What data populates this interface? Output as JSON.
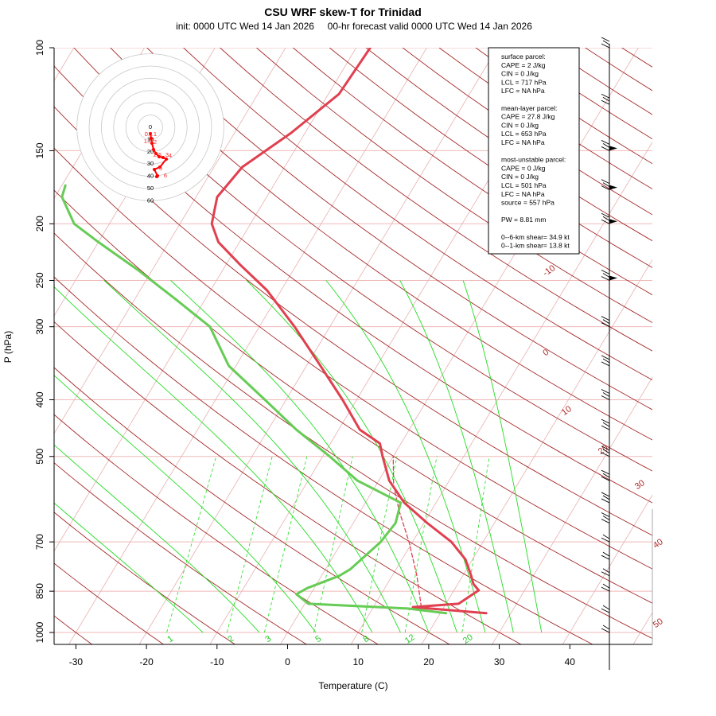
{
  "title": "CSU WRF skew-T for Trinidad",
  "subtitle": "init: 0000 UTC Wed 14 Jan 2026     00-hr forecast valid 0000 UTC Wed 14 Jan 2026",
  "chart_data": {
    "type": "line",
    "title": "CSU WRF skew-T for Trinidad",
    "xlabel": "Temperature (C)",
    "ylabel": "P (hPa)",
    "x_ticks": [
      -30,
      -20,
      -10,
      0,
      10,
      20,
      30,
      40
    ],
    "y_ticks": [
      100,
      150,
      200,
      250,
      300,
      400,
      500,
      700,
      850,
      1000
    ],
    "y_scale": "log",
    "xlim": [
      -33,
      45
    ],
    "ylim": [
      1050,
      100
    ],
    "isotherm_labels": [
      "-10",
      "0",
      "10",
      "20",
      "30",
      "40",
      "50"
    ],
    "mixing_ratio_labels": [
      "1",
      "2",
      "3",
      "5",
      "8",
      "12",
      "20"
    ],
    "series": [
      {
        "name": "temperature",
        "color": "#e0404f",
        "points": [
          [
            26.5,
            927
          ],
          [
            15.6,
            905
          ],
          [
            21.8,
            893
          ],
          [
            23.5,
            847
          ],
          [
            22.2,
            826
          ],
          [
            21.2,
            800
          ],
          [
            19.0,
            750
          ],
          [
            15.5,
            700
          ],
          [
            10.5,
            650
          ],
          [
            5.5,
            600
          ],
          [
            1.5,
            550
          ],
          [
            -1.5,
            500
          ],
          [
            -3.0,
            475
          ],
          [
            -7.0,
            450
          ],
          [
            -12.0,
            400
          ],
          [
            -18.0,
            350
          ],
          [
            -25.0,
            300
          ],
          [
            -32.0,
            260
          ],
          [
            -38.0,
            235
          ],
          [
            -43.0,
            215
          ],
          [
            -45.5,
            200
          ],
          [
            -47.0,
            180
          ],
          [
            -46.0,
            160
          ],
          [
            -42.0,
            140
          ],
          [
            -38.5,
            120
          ],
          [
            -38.0,
            100
          ]
        ]
      },
      {
        "name": "parcel",
        "color": "#e0404f",
        "points": [
          [
            16.8,
            905
          ],
          [
            13.5,
            800
          ],
          [
            9.5,
            700
          ],
          [
            5.5,
            620
          ],
          [
            2.5,
            560
          ],
          [
            0.0,
            500
          ]
        ]
      },
      {
        "name": "dewpoint",
        "color": "#66cc55",
        "points": [
          [
            20.8,
            927
          ],
          [
            15.0,
            910
          ],
          [
            0.5,
            893
          ],
          [
            -2.0,
            860
          ],
          [
            -1.0,
            840
          ],
          [
            2.5,
            800
          ],
          [
            3.5,
            780
          ],
          [
            5.5,
            700
          ],
          [
            6.0,
            650
          ],
          [
            5.0,
            600
          ],
          [
            -3.0,
            550
          ],
          [
            -9.0,
            500
          ],
          [
            -16.0,
            450
          ],
          [
            -23.0,
            400
          ],
          [
            -31.0,
            350
          ],
          [
            -37.0,
            300
          ],
          [
            -44.0,
            270
          ],
          [
            -52.0,
            240
          ],
          [
            -60.0,
            215
          ],
          [
            -65.0,
            200
          ],
          [
            -69.0,
            180
          ],
          [
            -69.5,
            172
          ]
        ]
      }
    ],
    "wind_barb_pressures_hPa": [
      1000,
      925,
      850,
      800,
      750,
      700,
      650,
      600,
      550,
      500,
      450,
      400,
      350,
      300,
      250,
      200,
      175,
      150,
      125,
      100
    ],
    "hodograph": {
      "ring_labels": [
        "0",
        "10",
        "20",
        "30",
        "40",
        "50",
        "60"
      ],
      "point_labels": [
        "0.1",
        "1",
        "1.5",
        "2",
        "2.5",
        "3",
        "4",
        "5",
        "6"
      ]
    }
  },
  "info_box": {
    "lines": [
      "surface parcel:",
      "CAPE = 2 J/kg",
      "CIN = 0 J/kg",
      "LCL = 717 hPa",
      "LFC = NA hPa",
      "",
      "mean-layer parcel:",
      "CAPE = 27.8 J/kg",
      "CIN = 0 J/kg",
      "LCL = 653 hPa",
      "LFC = NA hPa",
      "",
      "most-unstable parcel:",
      "CAPE = 0 J/kg",
      "CIN = 0 J/kg",
      "LCL = 501 hPa",
      "LFC = NA hPa",
      "source = 557 hPa",
      "",
      "PW =  8.81 mm",
      "",
      "0--6-km shear= 34.9 kt",
      "0--1-km shear= 13.8 kt"
    ]
  },
  "colors": {
    "temperature": "#e0404f",
    "dewpoint": "#66cc55",
    "dry_adiabat": "#a52a2a",
    "moist_adiabat": "#22dd22",
    "isotherm": "#e8b0b0",
    "isobar": "#f0b8b8"
  }
}
